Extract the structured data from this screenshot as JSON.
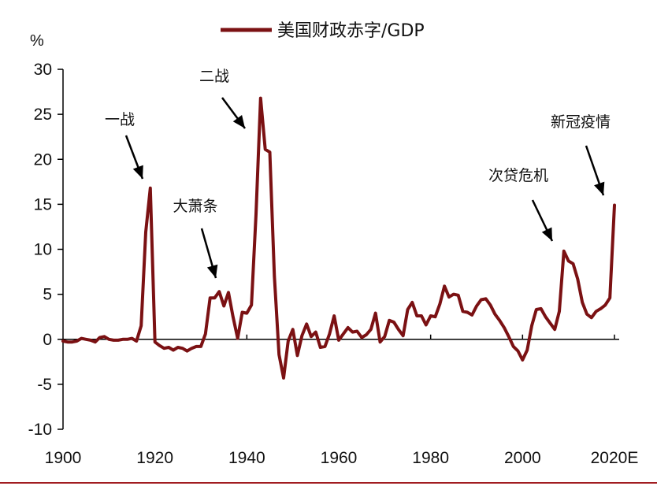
{
  "chart_data": {
    "type": "line",
    "title": "",
    "ylabel": "%",
    "xlabel": "",
    "ylim": [
      -10,
      30
    ],
    "xlim": [
      1900,
      2020
    ],
    "y_ticks": [
      -10,
      -5,
      0,
      5,
      10,
      15,
      20,
      25,
      30
    ],
    "x_ticks": [
      {
        "value": 1900,
        "label": "1900"
      },
      {
        "value": 1920,
        "label": "1920"
      },
      {
        "value": 1940,
        "label": "1940"
      },
      {
        "value": 1960,
        "label": "1960"
      },
      {
        "value": 1980,
        "label": "1980"
      },
      {
        "value": 2000,
        "label": "2000"
      },
      {
        "value": 2020,
        "label": "2020E"
      }
    ],
    "grid": false,
    "legend_position": "top",
    "series": [
      {
        "name": "美国财政赤字/GDP",
        "color": "#7b1113",
        "x": [
          1900,
          1901,
          1902,
          1903,
          1904,
          1905,
          1906,
          1907,
          1908,
          1909,
          1910,
          1911,
          1912,
          1913,
          1914,
          1915,
          1916,
          1917,
          1918,
          1919,
          1920,
          1921,
          1922,
          1923,
          1924,
          1925,
          1926,
          1927,
          1928,
          1929,
          1930,
          1931,
          1932,
          1933,
          1934,
          1935,
          1936,
          1937,
          1938,
          1939,
          1940,
          1941,
          1942,
          1943,
          1944,
          1945,
          1946,
          1947,
          1948,
          1949,
          1950,
          1951,
          1952,
          1953,
          1954,
          1955,
          1956,
          1957,
          1958,
          1959,
          1960,
          1961,
          1962,
          1963,
          1964,
          1965,
          1966,
          1967,
          1968,
          1969,
          1970,
          1971,
          1972,
          1973,
          1974,
          1975,
          1976,
          1977,
          1978,
          1979,
          1980,
          1981,
          1982,
          1983,
          1984,
          1985,
          1986,
          1987,
          1988,
          1989,
          1990,
          1991,
          1992,
          1993,
          1994,
          1995,
          1996,
          1997,
          1998,
          1999,
          2000,
          2001,
          2002,
          2003,
          2004,
          2005,
          2006,
          2007,
          2008,
          2009,
          2010,
          2011,
          2012,
          2013,
          2014,
          2015,
          2016,
          2017,
          2018,
          2019,
          2020
        ],
        "values": [
          -0.2,
          -0.3,
          -0.3,
          -0.2,
          0.1,
          0.0,
          -0.1,
          -0.3,
          0.2,
          0.3,
          0.0,
          -0.1,
          -0.1,
          0.0,
          0.0,
          0.1,
          -0.2,
          1.5,
          11.9,
          16.8,
          -0.3,
          -0.7,
          -1.0,
          -0.9,
          -1.2,
          -0.9,
          -1.0,
          -1.3,
          -1.0,
          -0.8,
          -0.8,
          0.6,
          4.6,
          4.6,
          5.3,
          3.7,
          5.2,
          2.5,
          0.1,
          3.0,
          2.9,
          3.8,
          13.9,
          26.8,
          21.1,
          20.8,
          7.0,
          -1.7,
          -4.3,
          -0.2,
          1.1,
          -1.8,
          0.4,
          1.7,
          0.3,
          0.8,
          -0.9,
          -0.8,
          0.6,
          2.6,
          -0.1,
          0.6,
          1.3,
          0.8,
          0.9,
          0.2,
          0.5,
          1.1,
          2.9,
          -0.3,
          0.3,
          2.1,
          1.9,
          1.1,
          0.4,
          3.3,
          4.1,
          2.6,
          2.6,
          1.6,
          2.6,
          2.5,
          3.9,
          5.9,
          4.7,
          5.0,
          4.9,
          3.1,
          3.0,
          2.7,
          3.7,
          4.4,
          4.5,
          3.8,
          2.8,
          2.1,
          1.3,
          0.3,
          -0.8,
          -1.3,
          -2.3,
          -1.2,
          1.5,
          3.3,
          3.4,
          2.5,
          1.8,
          1.1,
          3.1,
          9.8,
          8.7,
          8.4,
          6.7,
          4.1,
          2.8,
          2.4,
          3.1,
          3.4,
          3.8,
          4.6,
          14.9
        ]
      }
    ],
    "annotations": [
      {
        "text": "一战",
        "x": 1918
      },
      {
        "text": "大萧条",
        "x": 1933
      },
      {
        "text": "二战",
        "x": 1943
      },
      {
        "text": "次贷危机",
        "x": 2009
      },
      {
        "text": "新冠疫情",
        "x": 2020
      }
    ]
  }
}
